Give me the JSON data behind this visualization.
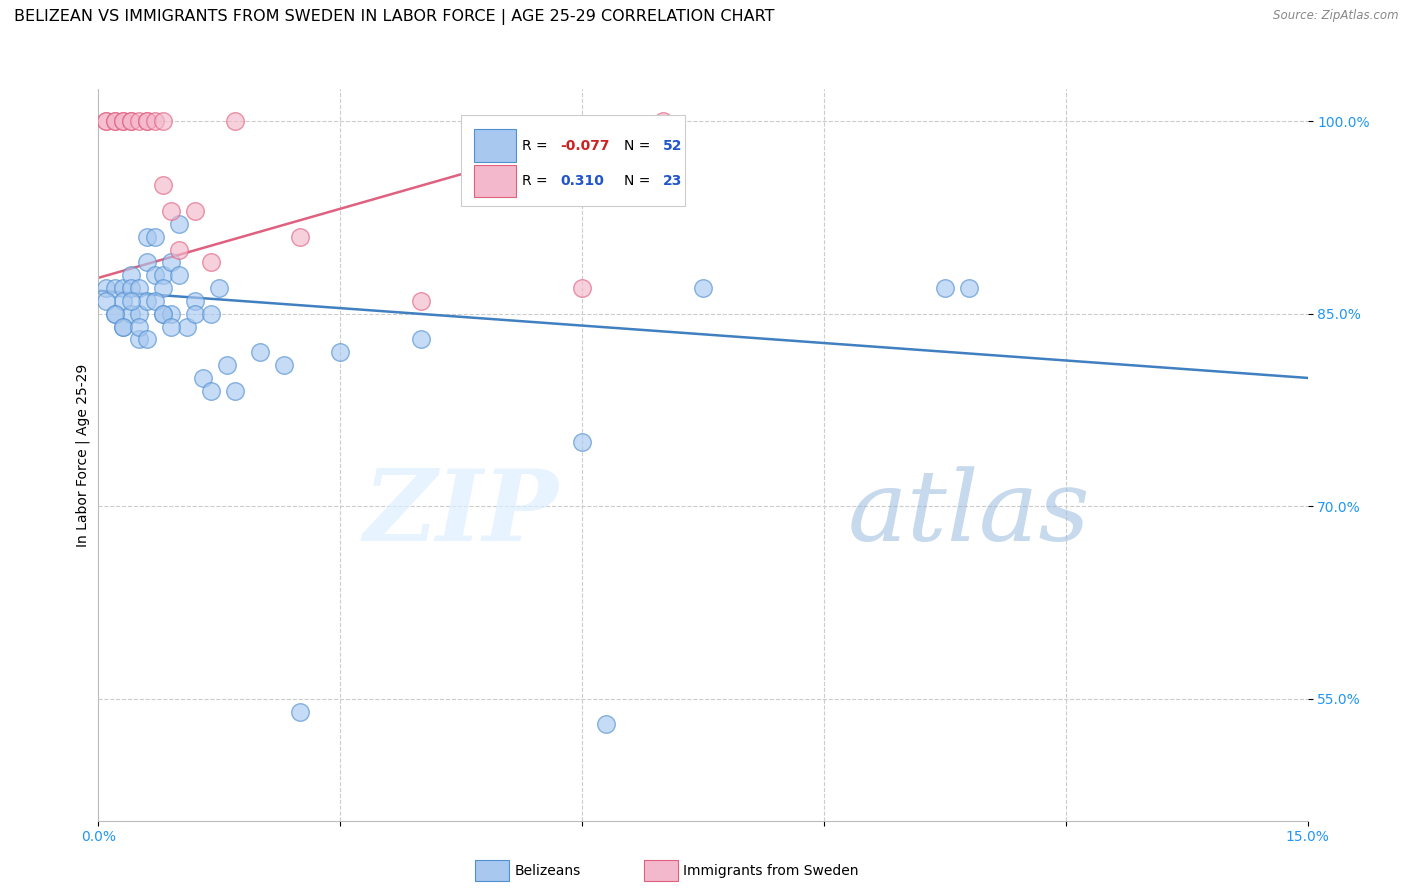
{
  "title": "BELIZEAN VS IMMIGRANTS FROM SWEDEN IN LABOR FORCE | AGE 25-29 CORRELATION CHART",
  "source": "Source: ZipAtlas.com",
  "ylabel": "In Labor Force | Age 25-29",
  "xlim": [
    0.0,
    0.15
  ],
  "ylim": [
    0.455,
    1.025
  ],
  "xtick_positions": [
    0.0,
    0.03,
    0.06,
    0.09,
    0.12,
    0.15
  ],
  "xtick_labels": [
    "0.0%",
    "",
    "",
    "",
    "",
    "15.0%"
  ],
  "ytick_positions": [
    0.55,
    0.7,
    0.85,
    1.0
  ],
  "ytick_labels": [
    "55.0%",
    "70.0%",
    "85.0%",
    "100.0%"
  ],
  "blue_color": "#a8c8f0",
  "pink_color": "#f4b8cc",
  "blue_edge_color": "#5090d0",
  "pink_edge_color": "#e06080",
  "blue_line_color": "#4080c0",
  "pink_line_color": "#e06080",
  "legend_label_blue": "Belizeans",
  "legend_label_pink": "Immigrants from Sweden",
  "blue_r_text": "-0.077",
  "blue_n_text": "52",
  "pink_r_text": "0.310",
  "pink_n_text": "23",
  "blue_x": [
    0.001,
    0.002,
    0.002,
    0.003,
    0.003,
    0.003,
    0.004,
    0.004,
    0.004,
    0.005,
    0.005,
    0.005,
    0.006,
    0.006,
    0.006,
    0.007,
    0.007,
    0.008,
    0.008,
    0.008,
    0.009,
    0.009,
    0.01,
    0.01,
    0.011,
    0.012,
    0.012,
    0.013,
    0.014,
    0.014,
    0.015,
    0.016,
    0.017,
    0.02,
    0.023,
    0.025,
    0.03,
    0.04,
    0.06,
    0.063,
    0.075,
    0.105,
    0.108,
    0.001,
    0.002,
    0.003,
    0.004,
    0.005,
    0.006,
    0.007,
    0.008,
    0.009
  ],
  "blue_y": [
    0.87,
    0.87,
    0.85,
    0.87,
    0.86,
    0.84,
    0.88,
    0.87,
    0.85,
    0.87,
    0.85,
    0.83,
    0.91,
    0.89,
    0.86,
    0.91,
    0.88,
    0.88,
    0.87,
    0.85,
    0.89,
    0.85,
    0.92,
    0.88,
    0.84,
    0.86,
    0.85,
    0.8,
    0.79,
    0.85,
    0.87,
    0.81,
    0.79,
    0.82,
    0.81,
    0.54,
    0.82,
    0.83,
    0.75,
    0.53,
    0.87,
    0.87,
    0.87,
    0.86,
    0.85,
    0.84,
    0.86,
    0.84,
    0.83,
    0.86,
    0.85,
    0.84
  ],
  "pink_x": [
    0.001,
    0.001,
    0.002,
    0.002,
    0.003,
    0.003,
    0.004,
    0.004,
    0.005,
    0.006,
    0.006,
    0.007,
    0.008,
    0.008,
    0.009,
    0.01,
    0.012,
    0.014,
    0.017,
    0.025,
    0.04,
    0.06,
    0.07
  ],
  "pink_y": [
    1.0,
    1.0,
    1.0,
    1.0,
    1.0,
    1.0,
    1.0,
    1.0,
    1.0,
    1.0,
    1.0,
    1.0,
    0.95,
    1.0,
    0.93,
    0.9,
    0.93,
    0.89,
    1.0,
    0.91,
    0.86,
    0.87,
    1.0
  ],
  "blue_line_x0": 0.0,
  "blue_line_x1": 0.15,
  "blue_line_y0": 0.868,
  "blue_line_y1": 0.8,
  "pink_line_x0": 0.0,
  "pink_line_x1": 0.068,
  "pink_line_y0": 0.878,
  "pink_line_y1": 1.0,
  "watermark_zip": "ZIP",
  "watermark_atlas": "atlas",
  "title_fontsize": 11.5,
  "tick_fontsize": 10,
  "label_fontsize": 10
}
